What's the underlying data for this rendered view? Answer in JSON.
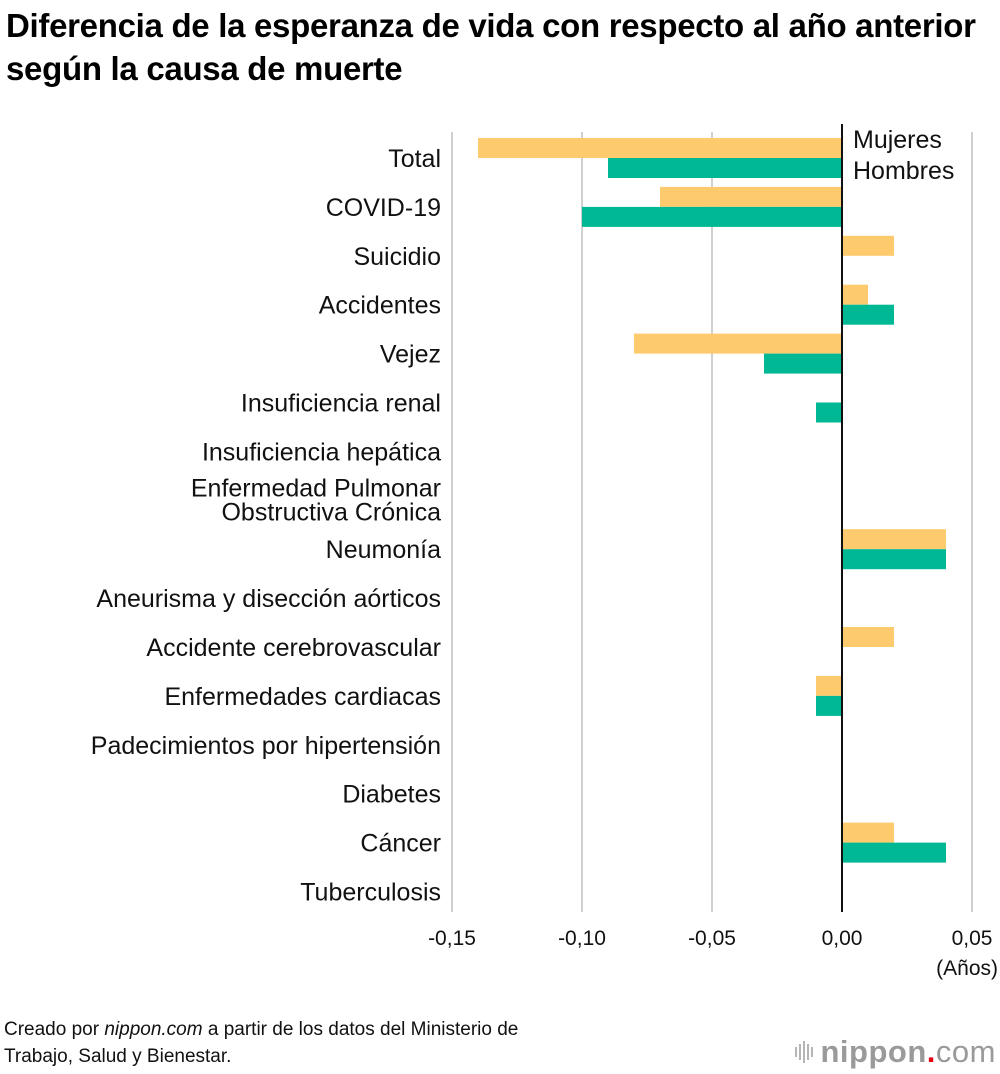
{
  "title": "Diferencia de la esperanza de vida con respecto al año anterior según la causa de muerte",
  "chart_data": {
    "type": "bar",
    "orientation": "horizontal",
    "title": "Diferencia de la esperanza de vida con respecto al año anterior según la causa de muerte",
    "xlabel": "(Años)",
    "ylabel": "",
    "xlim": [
      -0.15,
      0.05
    ],
    "xticks": [
      -0.15,
      -0.1,
      -0.05,
      0.0,
      0.05
    ],
    "xtick_labels": [
      "-0,15",
      "-0,10",
      "-0,05",
      "0,00",
      "0,05"
    ],
    "grid": "vertical",
    "legend_placement": "top-right",
    "categories": [
      "Total",
      "COVID-19",
      "Suicidio",
      "Accidentes",
      "Vejez",
      "Insuficiencia renal",
      "Insuficiencia hepática",
      "Enfermedad Pulmonar\nObstructiva Crónica",
      "Neumonía",
      "Aneurisma y disección aórticos",
      "Accidente cerebrovascular",
      "Enfermedades cardiacas",
      "Padecimientos por hipertensión",
      "Diabetes",
      "Cáncer",
      "Tuberculosis"
    ],
    "series": [
      {
        "name": "Mujeres",
        "color": "#fdca6e",
        "values": [
          -0.14,
          -0.07,
          0.02,
          0.01,
          -0.08,
          0.0,
          0.0,
          0.0,
          0.04,
          0.0,
          0.02,
          -0.01,
          0.0,
          0.0,
          0.02,
          0.0
        ]
      },
      {
        "name": "Hombres",
        "color": "#00b894",
        "values": [
          -0.09,
          -0.1,
          0.0,
          0.02,
          -0.03,
          -0.01,
          0.0,
          0.0,
          0.04,
          0.0,
          0.0,
          -0.01,
          0.0,
          0.0,
          0.04,
          0.0
        ]
      }
    ]
  },
  "footer": {
    "prefix": "Creado por ",
    "source_site": "nippon.com",
    "suffix": " a partir de los datos del Ministerio de",
    "line2": "Trabajo, Salud y Bienestar."
  },
  "brand": {
    "name": "nippon",
    "dot": ".",
    "tld": "com",
    "dot_color": "#e60012"
  }
}
